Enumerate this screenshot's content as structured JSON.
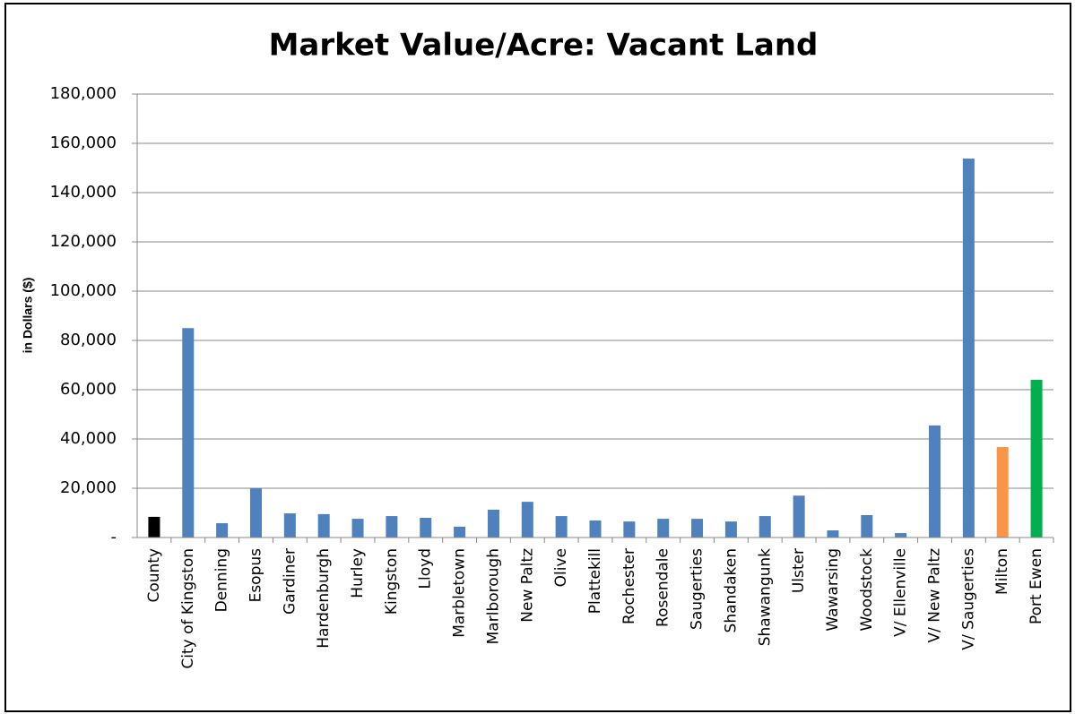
{
  "chart_data": {
    "type": "bar",
    "title": "Market Value/Acre:  Vacant Land",
    "y_axis_label": "in Dollars ($)",
    "categories": [
      "County",
      "City of Kingston",
      "Denning",
      "Esopus",
      "Gardiner",
      "Hardenburgh",
      "Hurley",
      "Kingston",
      "Lloyd",
      "Marbletown",
      "Marlborough",
      "New Paltz",
      "Olive",
      "Plattekill",
      "Rochester",
      "Rosendale",
      "Saugerties",
      "Shandaken",
      "Shawangunk",
      "Ulster",
      "Wawarsing",
      "Woodstock",
      "V/ Ellenville",
      "V/ New Paltz",
      "V/ Saugerties",
      "Milton",
      "Port Ewen"
    ],
    "values": [
      8400,
      85000,
      5800,
      20000,
      9800,
      9500,
      7600,
      8700,
      8000,
      4400,
      11300,
      14500,
      8700,
      6900,
      6500,
      7600,
      7600,
      6500,
      8700,
      17000,
      2900,
      9100,
      1800,
      45500,
      153800,
      36700,
      64000
    ],
    "colors": [
      "#000000",
      "#4f81bd",
      "#4f81bd",
      "#4f81bd",
      "#4f81bd",
      "#4f81bd",
      "#4f81bd",
      "#4f81bd",
      "#4f81bd",
      "#4f81bd",
      "#4f81bd",
      "#4f81bd",
      "#4f81bd",
      "#4f81bd",
      "#4f81bd",
      "#4f81bd",
      "#4f81bd",
      "#4f81bd",
      "#4f81bd",
      "#4f81bd",
      "#4f81bd",
      "#4f81bd",
      "#4f81bd",
      "#4f81bd",
      "#4f81bd",
      "#f79646",
      "#00b050"
    ],
    "ylim": [
      0,
      180000
    ],
    "yticks": [
      {
        "value": 0,
        "label": "-"
      },
      {
        "value": 20000,
        "label": "20,000"
      },
      {
        "value": 40000,
        "label": "40,000"
      },
      {
        "value": 60000,
        "label": "60,000"
      },
      {
        "value": 80000,
        "label": "80,000"
      },
      {
        "value": 100000,
        "label": "100,000"
      },
      {
        "value": 120000,
        "label": "120,000"
      },
      {
        "value": 140000,
        "label": "140,000"
      },
      {
        "value": 160000,
        "label": "160,000"
      },
      {
        "value": 180000,
        "label": "180,000"
      }
    ],
    "grid": true
  }
}
